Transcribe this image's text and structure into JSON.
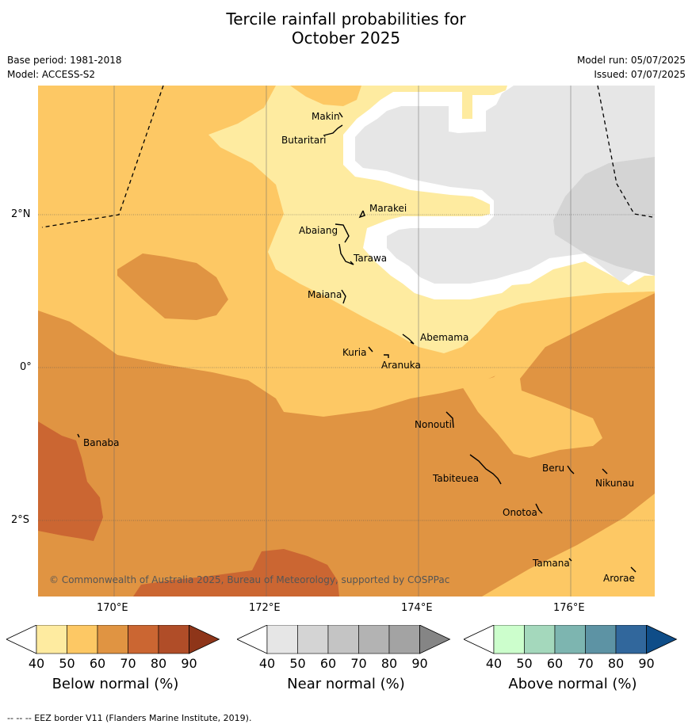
{
  "title_line1": "Tercile rainfall probabilities for",
  "title_line2": "October 2025",
  "base_period": "Base period: 1981-2018",
  "model": "Model: ACCESS-S2",
  "model_run": "Model run: 05/07/2025",
  "issued": "Issued: 07/07/2025",
  "copyright": "© Commonwealth of Australia 2025, Bureau of Meteorology, supported by COSPPac",
  "footnote": "--  --  -- EEZ border V11 (Flanders Marine Institute, 2019).",
  "lat_labels": [
    "2°N",
    "0°",
    "2°S"
  ],
  "lon_labels": [
    "170°E",
    "172°E",
    "174°E",
    "176°E"
  ],
  "islands": [
    "Makin",
    "Butaritari",
    "Marakei",
    "Abaiang",
    "Tarawa",
    "Maiana",
    "Abemama",
    "Kuria",
    "Aranuka",
    "Nonouti",
    "Banaba",
    "Tabiteuea",
    "Beru",
    "Nikunau",
    "Onotoa",
    "Tamana",
    "Arorae"
  ],
  "colorbars": [
    {
      "label": "Below normal (%)",
      "ticks": [
        "40",
        "50",
        "60",
        "70",
        "80",
        "90"
      ],
      "colors": [
        "#ffffff",
        "#feeba0",
        "#fdc864",
        "#e09442",
        "#cb6632",
        "#b04d28",
        "#8e3519"
      ]
    },
    {
      "label": "Near normal (%)",
      "ticks": [
        "40",
        "50",
        "60",
        "70",
        "80",
        "90"
      ],
      "colors": [
        "#ffffff",
        "#e6e6e6",
        "#d4d4d4",
        "#c4c4c4",
        "#b3b3b3",
        "#a3a3a3",
        "#858585"
      ]
    },
    {
      "label": "Above normal (%)",
      "ticks": [
        "40",
        "50",
        "60",
        "70",
        "80",
        "90"
      ],
      "colors": [
        "#ffffff",
        "#ccfecc",
        "#a4d8bc",
        "#7db5b0",
        "#5d93a4",
        "#31679c",
        "#0f4d88"
      ]
    }
  ]
}
